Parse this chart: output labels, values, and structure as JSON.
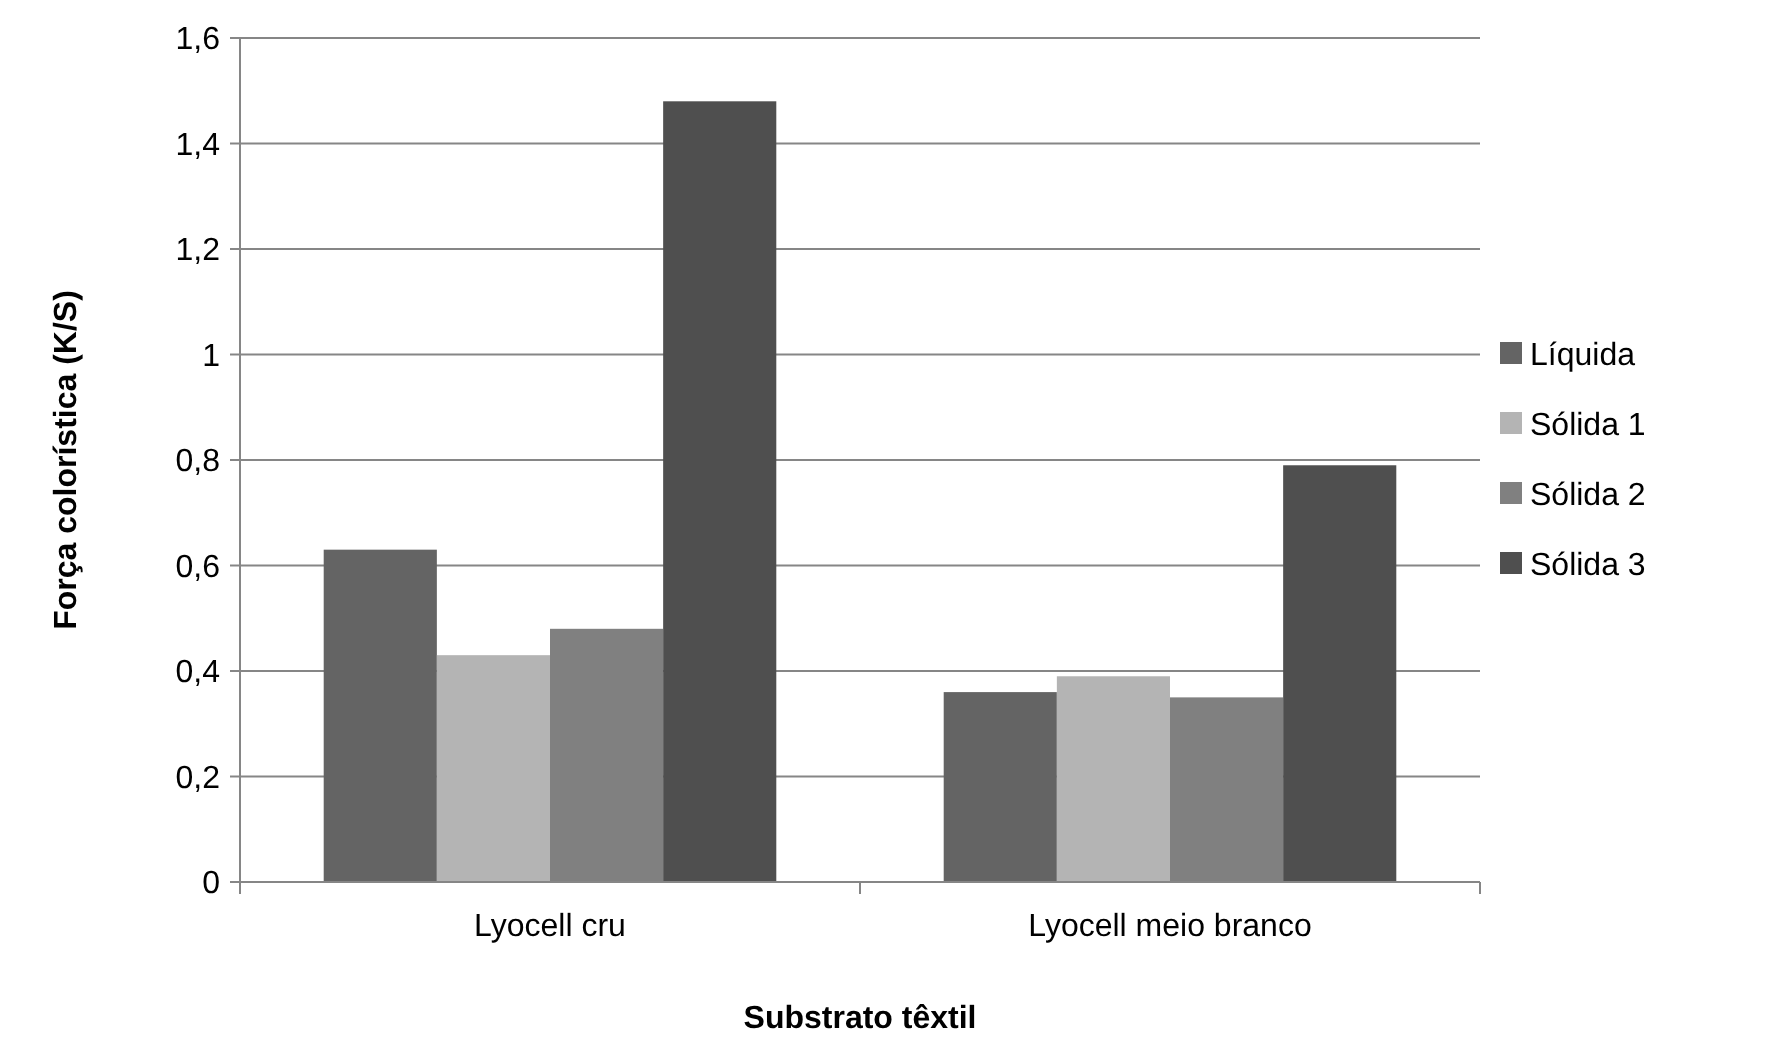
{
  "chart_data": {
    "type": "bar",
    "xlabel": "Substrato têxtil",
    "ylabel": "Força colorística (K/S)",
    "categories": [
      "Lyocell cru",
      "Lyocell meio branco"
    ],
    "series": [
      {
        "name": "Líquida",
        "color": "#646464",
        "values": [
          0.63,
          0.36
        ]
      },
      {
        "name": "Sólida 1",
        "color": "#b4b4b4",
        "values": [
          0.43,
          0.39
        ]
      },
      {
        "name": "Sólida 2",
        "color": "#808080",
        "values": [
          0.48,
          0.35
        ]
      },
      {
        "name": "Sólida 3",
        "color": "#4f4f4f",
        "values": [
          1.48,
          0.79
        ]
      }
    ],
    "ylim": [
      0,
      1.6
    ],
    "yticks": [
      {
        "value": 0,
        "label": "0"
      },
      {
        "value": 0.2,
        "label": "0,2"
      },
      {
        "value": 0.4,
        "label": "0,4"
      },
      {
        "value": 0.6,
        "label": "0,6"
      },
      {
        "value": 0.8,
        "label": "0,8"
      },
      {
        "value": 1,
        "label": "1"
      },
      {
        "value": 1.2,
        "label": "1,2"
      },
      {
        "value": 1.4,
        "label": "1,4"
      },
      {
        "value": 1.6,
        "label": "1,6"
      }
    ],
    "grid": "y",
    "legend": "right"
  }
}
